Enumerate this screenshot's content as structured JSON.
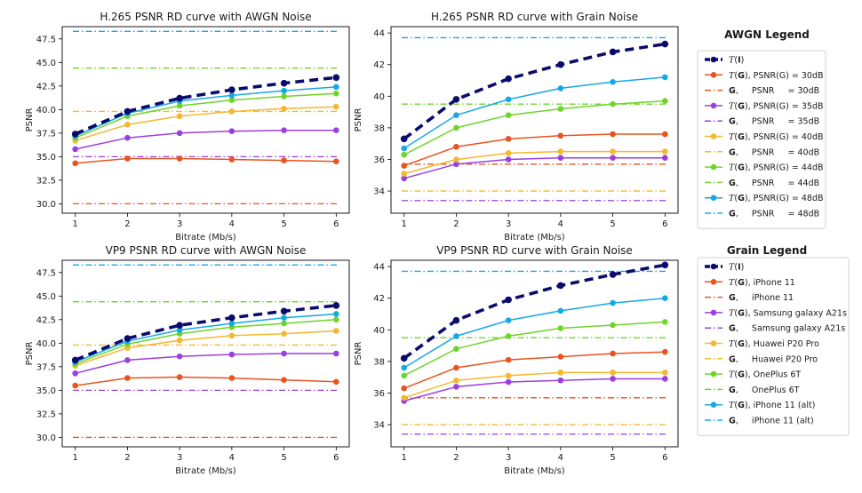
{
  "chart_data": [
    {
      "type": "line",
      "title": "H.265 PSNR RD curve with AWGN Noise",
      "xlabel": "Bitrate (Mb/s)",
      "ylabel": "PSNR",
      "xlim": [
        0.75,
        6.25
      ],
      "ylim": [
        29.0,
        48.8
      ],
      "xticks": [
        1,
        2,
        3,
        4,
        5,
        6
      ],
      "yticks": [
        30.0,
        32.5,
        35.0,
        37.5,
        40.0,
        42.5,
        45.0,
        47.5
      ],
      "x": [
        1,
        2,
        3,
        4,
        5,
        6
      ],
      "series": [
        {
          "name": "T(I)",
          "values": [
            37.4,
            39.8,
            41.2,
            42.1,
            42.8,
            43.4
          ],
          "color": "#0b0b6e",
          "style": "dashed-bold"
        },
        {
          "name": "T(G), PSNR(G) = 30dB",
          "values": [
            34.3,
            34.8,
            34.8,
            34.7,
            34.6,
            34.5
          ],
          "color": "#e8531f",
          "style": "solid"
        },
        {
          "name": "G, PSNR = 30dB",
          "values": [
            30.0,
            30.0,
            30.0,
            30.0,
            30.0,
            30.0
          ],
          "color": "#e8531f",
          "style": "dashdot"
        },
        {
          "name": "T(G), PSNR(G) = 35dB",
          "values": [
            35.8,
            37.0,
            37.5,
            37.7,
            37.8,
            37.8
          ],
          "color": "#9b3fe0",
          "style": "solid"
        },
        {
          "name": "G, PSNR = 35dB",
          "values": [
            35.0,
            35.0,
            35.0,
            35.0,
            35.0,
            35.0
          ],
          "color": "#9b3fe0",
          "style": "dashdot"
        },
        {
          "name": "T(G), PSNR(G) = 40dB",
          "values": [
            36.7,
            38.4,
            39.3,
            39.8,
            40.1,
            40.3
          ],
          "color": "#f5b82e",
          "style": "solid"
        },
        {
          "name": "G, PSNR = 40dB",
          "values": [
            39.8,
            39.8,
            39.8,
            39.8,
            39.8,
            39.8
          ],
          "color": "#f5b82e",
          "style": "dashdot"
        },
        {
          "name": "T(G), PSNR(G) = 44dB",
          "values": [
            37.0,
            39.3,
            40.4,
            41.0,
            41.4,
            41.7
          ],
          "color": "#6fd42a",
          "style": "solid"
        },
        {
          "name": "G, PSNR = 44dB",
          "values": [
            44.4,
            44.4,
            44.4,
            44.4,
            44.4,
            44.4
          ],
          "color": "#6fd42a",
          "style": "dashdot"
        },
        {
          "name": "T(G), PSNR(G) = 48dB",
          "values": [
            37.2,
            39.6,
            40.9,
            41.5,
            42.0,
            42.4
          ],
          "color": "#15a8e6",
          "style": "solid"
        },
        {
          "name": "G, PSNR = 48dB",
          "values": [
            48.3,
            48.3,
            48.3,
            48.3,
            48.3,
            48.3
          ],
          "color": "#15a8e6",
          "style": "dashdot"
        }
      ]
    },
    {
      "type": "line",
      "title": "H.265 PSNR RD curve with Grain Noise",
      "xlabel": "Bitrate (Mb/s)",
      "ylabel": "PSNR",
      "xlim": [
        0.75,
        6.25
      ],
      "ylim": [
        32.6,
        44.4
      ],
      "xticks": [
        1,
        2,
        3,
        4,
        5,
        6
      ],
      "yticks": [
        34,
        36,
        38,
        40,
        42,
        44
      ],
      "x": [
        1,
        2,
        3,
        4,
        5,
        6
      ],
      "series": [
        {
          "name": "T(I)",
          "values": [
            37.3,
            39.8,
            41.1,
            42.0,
            42.8,
            43.3
          ],
          "color": "#0b0b6e",
          "style": "dashed-bold"
        },
        {
          "name": "T(G), iPhone 11",
          "values": [
            35.6,
            36.8,
            37.3,
            37.5,
            37.6,
            37.6
          ],
          "color": "#e8531f",
          "style": "solid"
        },
        {
          "name": "G, iPhone 11",
          "values": [
            35.7,
            35.7,
            35.7,
            35.7,
            35.7,
            35.7
          ],
          "color": "#e8531f",
          "style": "dashdot"
        },
        {
          "name": "T(G), Samsung galaxy A21s",
          "values": [
            34.8,
            35.7,
            36.0,
            36.1,
            36.1,
            36.1
          ],
          "color": "#9b3fe0",
          "style": "solid"
        },
        {
          "name": "G, Samsung galaxy A21s",
          "values": [
            33.4,
            33.4,
            33.4,
            33.4,
            33.4,
            33.4
          ],
          "color": "#9b3fe0",
          "style": "dashdot"
        },
        {
          "name": "T(G), Huawei P20 Pro",
          "values": [
            35.1,
            36.0,
            36.4,
            36.5,
            36.5,
            36.5
          ],
          "color": "#f5b82e",
          "style": "solid"
        },
        {
          "name": "G, Huawei P20 Pro",
          "values": [
            34.0,
            34.0,
            34.0,
            34.0,
            34.0,
            34.0
          ],
          "color": "#f5b82e",
          "style": "dashdot"
        },
        {
          "name": "T(G), OnePlus 6T",
          "values": [
            36.3,
            38.0,
            38.8,
            39.2,
            39.5,
            39.7
          ],
          "color": "#6fd42a",
          "style": "solid"
        },
        {
          "name": "G, OnePlus 6T",
          "values": [
            39.5,
            39.5,
            39.5,
            39.5,
            39.5,
            39.5
          ],
          "color": "#6fd42a",
          "style": "dashdot"
        },
        {
          "name": "T(G), iPhone 11 (alt)",
          "values": [
            36.7,
            38.8,
            39.8,
            40.5,
            40.9,
            41.2
          ],
          "color": "#15a8e6",
          "style": "solid"
        },
        {
          "name": "G, iPhone 11 (alt)",
          "values": [
            43.7,
            43.7,
            43.7,
            43.7,
            43.7,
            43.7
          ],
          "color": "#15a8e6",
          "style": "dashdot"
        }
      ]
    },
    {
      "type": "line",
      "title": "VP9 PSNR RD curve with AWGN Noise",
      "xlabel": "Bitrate (Mb/s)",
      "ylabel": "PSNR",
      "xlim": [
        0.75,
        6.25
      ],
      "ylim": [
        29.0,
        48.8
      ],
      "xticks": [
        1,
        2,
        3,
        4,
        5,
        6
      ],
      "yticks": [
        30.0,
        32.5,
        35.0,
        37.5,
        40.0,
        42.5,
        45.0,
        47.5
      ],
      "x": [
        1,
        2,
        3,
        4,
        5,
        6
      ],
      "series": [
        {
          "name": "T(I)",
          "values": [
            38.2,
            40.5,
            41.9,
            42.7,
            43.4,
            44.0
          ],
          "color": "#0b0b6e",
          "style": "dashed-bold"
        },
        {
          "name": "T(G), PSNR(G) = 30dB",
          "values": [
            35.5,
            36.3,
            36.4,
            36.3,
            36.1,
            35.9
          ],
          "color": "#e8531f",
          "style": "solid"
        },
        {
          "name": "G, PSNR = 30dB",
          "values": [
            30.0,
            30.0,
            30.0,
            30.0,
            30.0,
            30.0
          ],
          "color": "#e8531f",
          "style": "dashdot"
        },
        {
          "name": "T(G), PSNR(G) = 35dB",
          "values": [
            36.8,
            38.2,
            38.6,
            38.8,
            38.9,
            38.9
          ],
          "color": "#9b3fe0",
          "style": "solid"
        },
        {
          "name": "G, PSNR = 35dB",
          "values": [
            35.0,
            35.0,
            35.0,
            35.0,
            35.0,
            35.0
          ],
          "color": "#9b3fe0",
          "style": "dashdot"
        },
        {
          "name": "T(G), PSNR(G) = 40dB",
          "values": [
            37.6,
            39.5,
            40.3,
            40.8,
            41.0,
            41.3
          ],
          "color": "#f5b82e",
          "style": "solid"
        },
        {
          "name": "G, PSNR = 40dB",
          "values": [
            39.8,
            39.8,
            39.8,
            39.8,
            39.8,
            39.8
          ],
          "color": "#f5b82e",
          "style": "dashdot"
        },
        {
          "name": "T(G), PSNR(G) = 44dB",
          "values": [
            37.8,
            39.9,
            41.0,
            41.7,
            42.1,
            42.5
          ],
          "color": "#6fd42a",
          "style": "solid"
        },
        {
          "name": "G, PSNR = 44dB",
          "values": [
            44.4,
            44.4,
            44.4,
            44.4,
            44.4,
            44.4
          ],
          "color": "#6fd42a",
          "style": "dashdot"
        },
        {
          "name": "T(G), PSNR(G) = 48dB",
          "values": [
            38.0,
            40.2,
            41.4,
            42.1,
            42.7,
            43.1
          ],
          "color": "#15a8e6",
          "style": "solid"
        },
        {
          "name": "G, PSNR = 48dB",
          "values": [
            48.3,
            48.3,
            48.3,
            48.3,
            48.3,
            48.3
          ],
          "color": "#15a8e6",
          "style": "dashdot"
        }
      ]
    },
    {
      "type": "line",
      "title": "VP9 PSNR RD curve with Grain Noise",
      "xlabel": "Bitrate (Mb/s)",
      "ylabel": "PSNR",
      "xlim": [
        0.75,
        6.25
      ],
      "ylim": [
        32.6,
        44.4
      ],
      "xticks": [
        1,
        2,
        3,
        4,
        5,
        6
      ],
      "yticks": [
        34,
        36,
        38,
        40,
        42,
        44
      ],
      "x": [
        1,
        2,
        3,
        4,
        5,
        6
      ],
      "series": [
        {
          "name": "T(I)",
          "values": [
            38.2,
            40.6,
            41.9,
            42.8,
            43.5,
            44.1
          ],
          "color": "#0b0b6e",
          "style": "dashed-bold"
        },
        {
          "name": "T(G), iPhone 11",
          "values": [
            36.3,
            37.6,
            38.1,
            38.3,
            38.5,
            38.6
          ],
          "color": "#e8531f",
          "style": "solid"
        },
        {
          "name": "G, iPhone 11",
          "values": [
            35.7,
            35.7,
            35.7,
            35.7,
            35.7,
            35.7
          ],
          "color": "#e8531f",
          "style": "dashdot"
        },
        {
          "name": "T(G), Samsung galaxy A21s",
          "values": [
            35.5,
            36.4,
            36.7,
            36.8,
            36.9,
            36.9
          ],
          "color": "#9b3fe0",
          "style": "solid"
        },
        {
          "name": "G, Samsung galaxy A21s",
          "values": [
            33.4,
            33.4,
            33.4,
            33.4,
            33.4,
            33.4
          ],
          "color": "#9b3fe0",
          "style": "dashdot"
        },
        {
          "name": "T(G), Huawei P20 Pro",
          "values": [
            35.7,
            36.8,
            37.1,
            37.3,
            37.3,
            37.3
          ],
          "color": "#f5b82e",
          "style": "solid"
        },
        {
          "name": "G, Huawei P20 Pro",
          "values": [
            34.0,
            34.0,
            34.0,
            34.0,
            34.0,
            34.0
          ],
          "color": "#f5b82e",
          "style": "dashdot"
        },
        {
          "name": "T(G), OnePlus 6T",
          "values": [
            37.1,
            38.8,
            39.6,
            40.1,
            40.3,
            40.5
          ],
          "color": "#6fd42a",
          "style": "solid"
        },
        {
          "name": "G, OnePlus 6T",
          "values": [
            39.5,
            39.5,
            39.5,
            39.5,
            39.5,
            39.5
          ],
          "color": "#6fd42a",
          "style": "dashdot"
        },
        {
          "name": "T(G), iPhone 11 (alt)",
          "values": [
            37.6,
            39.6,
            40.6,
            41.2,
            41.7,
            42.0
          ],
          "color": "#15a8e6",
          "style": "solid"
        },
        {
          "name": "G, iPhone 11 (alt)",
          "values": [
            43.7,
            43.7,
            43.7,
            43.7,
            43.7,
            43.7
          ],
          "color": "#15a8e6",
          "style": "dashdot"
        }
      ]
    }
  ],
  "legends": [
    {
      "title": "AWGN Legend",
      "entries": [
        {
          "marker": "T",
          "mark": "I",
          "rest": "",
          "color": "#0b0b6e",
          "style": "dashed-bold"
        },
        {
          "marker": "T",
          "mark": "G",
          "rest": ", PSNR(G) = 30dB",
          "color": "#e8531f",
          "style": "solid"
        },
        {
          "marker": "G",
          "mark": "",
          "rest": ",     PSNR     = 30dB",
          "color": "#e8531f",
          "style": "dashdot"
        },
        {
          "marker": "T",
          "mark": "G",
          "rest": ", PSNR(G) = 35dB",
          "color": "#9b3fe0",
          "style": "solid"
        },
        {
          "marker": "G",
          "mark": "",
          "rest": ",     PSNR     = 35dB",
          "color": "#9b3fe0",
          "style": "dashdot"
        },
        {
          "marker": "T",
          "mark": "G",
          "rest": ", PSNR(G) = 40dB",
          "color": "#f5b82e",
          "style": "solid"
        },
        {
          "marker": "G",
          "mark": "",
          "rest": ",     PSNR     = 40dB",
          "color": "#f5b82e",
          "style": "dashdot"
        },
        {
          "marker": "T",
          "mark": "G",
          "rest": ", PSNR(G) = 44dB",
          "color": "#6fd42a",
          "style": "solid"
        },
        {
          "marker": "G",
          "mark": "",
          "rest": ",     PSNR     = 44dB",
          "color": "#6fd42a",
          "style": "dashdot"
        },
        {
          "marker": "T",
          "mark": "G",
          "rest": ", PSNR(G) = 48dB",
          "color": "#15a8e6",
          "style": "solid"
        },
        {
          "marker": "G",
          "mark": "",
          "rest": ",     PSNR     = 48dB",
          "color": "#15a8e6",
          "style": "dashdot"
        }
      ]
    },
    {
      "title": "Grain Legend",
      "entries": [
        {
          "marker": "T",
          "mark": "I",
          "rest": "",
          "color": "#0b0b6e",
          "style": "dashed-bold"
        },
        {
          "marker": "T",
          "mark": "G",
          "rest": ", iPhone 11",
          "color": "#e8531f",
          "style": "solid"
        },
        {
          "marker": "G",
          "mark": "",
          "rest": ",     iPhone 11",
          "color": "#e8531f",
          "style": "dashdot"
        },
        {
          "marker": "T",
          "mark": "G",
          "rest": ", Samsung galaxy A21s",
          "color": "#9b3fe0",
          "style": "solid"
        },
        {
          "marker": "G",
          "mark": "",
          "rest": ",     Samsung galaxy A21s",
          "color": "#9b3fe0",
          "style": "dashdot"
        },
        {
          "marker": "T",
          "mark": "G",
          "rest": ", Huawei P20 Pro",
          "color": "#f5b82e",
          "style": "solid"
        },
        {
          "marker": "G",
          "mark": "",
          "rest": ",     Huawei P20 Pro",
          "color": "#f5b82e",
          "style": "dashdot"
        },
        {
          "marker": "T",
          "mark": "G",
          "rest": ", OnePlus 6T",
          "color": "#6fd42a",
          "style": "solid"
        },
        {
          "marker": "G",
          "mark": "",
          "rest": ",     OnePlus 6T",
          "color": "#6fd42a",
          "style": "dashdot"
        },
        {
          "marker": "T",
          "mark": "G",
          "rest": ", iPhone 11 (alt)",
          "color": "#15a8e6",
          "style": "solid"
        },
        {
          "marker": "G",
          "mark": "",
          "rest": ",     iPhone 11 (alt)",
          "color": "#15a8e6",
          "style": "dashdot"
        }
      ]
    }
  ]
}
